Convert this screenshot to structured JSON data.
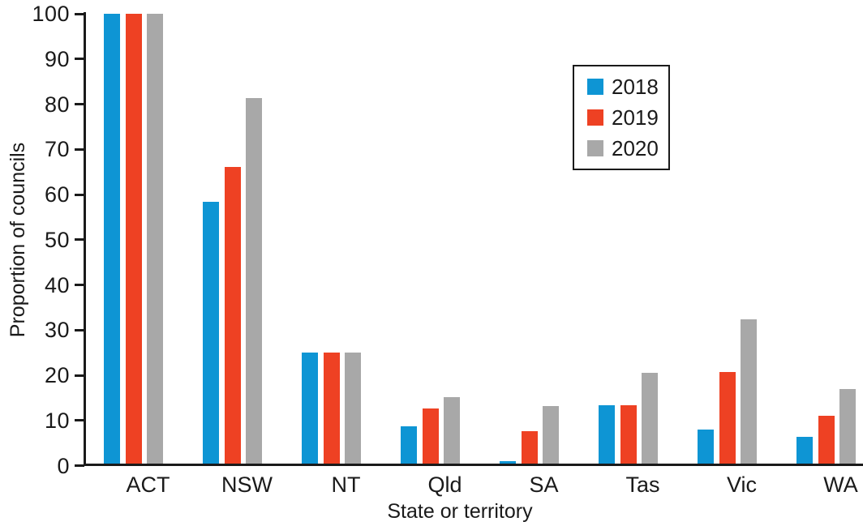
{
  "chart_data": {
    "type": "bar",
    "title": "",
    "xlabel": "State or territory",
    "ylabel": "Proportion of councils",
    "ylim": [
      0,
      100
    ],
    "yticks": [
      0,
      10,
      20,
      30,
      40,
      50,
      60,
      70,
      80,
      90,
      100
    ],
    "grid": false,
    "legend_position": "upper right inside",
    "categories": [
      "ACT",
      "NSW",
      "NT",
      "Qld",
      "SA",
      "Tas",
      "Vic",
      "WA"
    ],
    "series": [
      {
        "name": "2018",
        "color": "#0e95d4",
        "values": [
          100,
          58.3,
          25,
          8.7,
          1.0,
          13.4,
          7.9,
          6.3
        ]
      },
      {
        "name": "2019",
        "color": "#ee4123",
        "values": [
          100,
          66.1,
          25,
          12.7,
          7.7,
          13.4,
          20.7,
          11.0
        ]
      },
      {
        "name": "2020",
        "color": "#a8a8a8",
        "values": [
          100,
          81.4,
          25,
          15.2,
          13.2,
          20.5,
          32.3,
          16.9
        ]
      }
    ],
    "colors": {
      "axis": "#1a1a1a",
      "text": "#1a1a1a",
      "background": "#ffffff"
    }
  }
}
